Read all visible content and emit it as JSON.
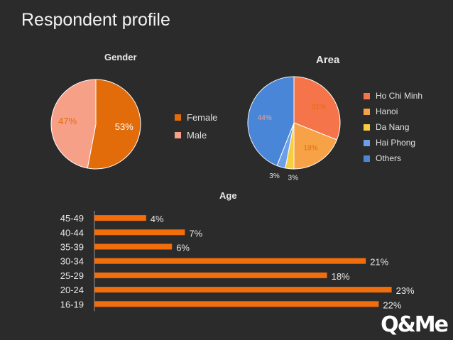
{
  "page": {
    "title": "Respondent profile"
  },
  "chart_data": [
    {
      "type": "pie",
      "title": "Gender",
      "slices": [
        {
          "label": "Female",
          "value": 53,
          "pct_label": "53%",
          "color": "#e36c0a"
        },
        {
          "label": "Male",
          "value": 47,
          "pct_label": "47%",
          "color": "#f7a088"
        }
      ],
      "legend": "right"
    },
    {
      "type": "pie",
      "title": "Area",
      "slices": [
        {
          "label": "Ho Chi Minh",
          "value": 31,
          "pct_label": "31%",
          "color": "#f5744a"
        },
        {
          "label": "Hanoi",
          "value": 19,
          "pct_label": "19%",
          "color": "#f7a246"
        },
        {
          "label": "Da Nang",
          "value": 3,
          "pct_label": "3%",
          "color": "#f5cf3f"
        },
        {
          "label": "Hai Phong",
          "value": 3,
          "pct_label": "3%",
          "color": "#6d9eeb"
        },
        {
          "label": "Others",
          "value": 44,
          "pct_label": "44%",
          "color": "#4a86d8"
        }
      ],
      "legend": "right"
    },
    {
      "type": "bar",
      "orientation": "horizontal",
      "title": "Age",
      "categories": [
        "45-49",
        "40-44",
        "35-39",
        "30-34",
        "25-29",
        "20-24",
        "16-19"
      ],
      "values": [
        4,
        7,
        6,
        21,
        18,
        23,
        22
      ],
      "value_labels": [
        "4%",
        "7%",
        "6%",
        "21%",
        "18%",
        "23%",
        "22%"
      ],
      "color": "#f26d0c",
      "xlim": [
        0,
        25
      ]
    }
  ],
  "logo": {
    "text": "Q&Me"
  }
}
